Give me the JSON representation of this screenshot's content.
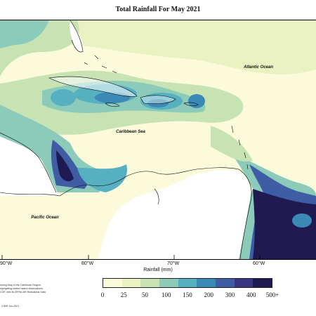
{
  "title": "Total Rainfall For May 2021",
  "labels": {
    "atlantic": "Atlantic Ocean",
    "caribbean": "Caribbean Sea",
    "pacific": "Pacific Ocean"
  },
  "longitudes": [
    "90°W",
    "80°W",
    "70°W",
    "60°W"
  ],
  "axis_title": "Rainfall (mm)",
  "legend": {
    "ticks": [
      "0",
      "25",
      "50",
      "100",
      "150",
      "200",
      "300",
      "400",
      "500+"
    ],
    "colors": [
      "#fbfbdc",
      "#e9f2c0",
      "#c7e3b4",
      "#8ccbba",
      "#56b0c0",
      "#3b8ab6",
      "#3e5da4",
      "#3a3683",
      "#1f1b52"
    ]
  },
  "footnote": [
    "itoring Map of the Caribbean Region.",
    "egregating station based observations,",
    "COF, with NCEP/NCAR Reanalysis Data"
  ],
  "credit": "CIMH Jun-2021"
}
